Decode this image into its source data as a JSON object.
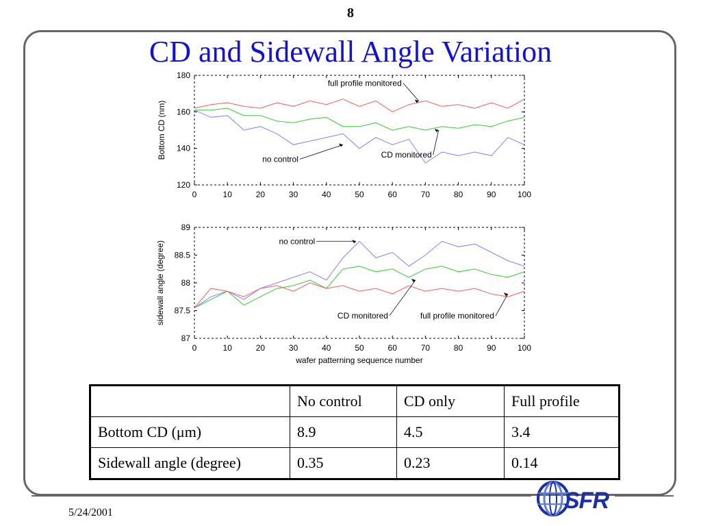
{
  "slide": {
    "page_number": "8",
    "title": "CD and Sidewall Angle Variation",
    "date": "5/24/2001",
    "logo_text": "SFR",
    "logo_icon": "globe-logo-icon"
  },
  "colors": {
    "title": "#1010e0",
    "no_control": "#8080ff",
    "cd_monitored": "#33cc33",
    "full_profile": "#ff5a5a"
  },
  "chart_data": [
    {
      "type": "line",
      "title": "",
      "xlabel": "",
      "ylabel": "Bottom CD (nm)",
      "xlim": [
        0,
        100
      ],
      "ylim": [
        120,
        180
      ],
      "xticks": [
        "0",
        "10",
        "20",
        "30",
        "40",
        "50",
        "60",
        "70",
        "80",
        "90",
        "100"
      ],
      "yticks": [
        "120",
        "140",
        "160",
        "180"
      ],
      "grid": false,
      "series": [
        {
          "key": "no_control",
          "x": [
            0,
            5,
            10,
            15,
            20,
            25,
            30,
            35,
            40,
            45,
            50,
            55,
            60,
            65,
            70,
            75,
            80,
            85,
            90,
            95,
            100
          ],
          "y": [
            161,
            157,
            158,
            150,
            152,
            148,
            142,
            144,
            146,
            148,
            140,
            146,
            142,
            145,
            132,
            138,
            136,
            138,
            136,
            146,
            142
          ]
        },
        {
          "key": "cd_monitored",
          "x": [
            0,
            5,
            10,
            15,
            20,
            25,
            30,
            35,
            40,
            45,
            50,
            55,
            60,
            65,
            70,
            75,
            80,
            85,
            90,
            95,
            100
          ],
          "y": [
            161,
            161,
            162,
            158,
            158,
            155,
            154,
            156,
            157,
            152,
            152,
            154,
            150,
            152,
            150,
            152,
            151,
            153,
            152,
            155,
            157
          ]
        },
        {
          "key": "full_profile",
          "x": [
            0,
            5,
            10,
            15,
            20,
            25,
            30,
            35,
            40,
            45,
            50,
            55,
            60,
            65,
            70,
            75,
            80,
            85,
            90,
            95,
            100
          ],
          "y": [
            162,
            164,
            165,
            163,
            162,
            165,
            163,
            166,
            164,
            167,
            163,
            166,
            160,
            164,
            166,
            163,
            164,
            162,
            165,
            162,
            167
          ]
        }
      ],
      "annotations": [
        {
          "text": "full profile monitored",
          "x": 68,
          "y": 166
        },
        {
          "text": "no control",
          "x": 45,
          "y": 142
        },
        {
          "text": "CD monitored",
          "x": 74,
          "y": 150
        }
      ]
    },
    {
      "type": "line",
      "title": "",
      "xlabel": "wafer patterning sequence number",
      "ylabel": "sidewall angle (degree)",
      "xlim": [
        0,
        100
      ],
      "ylim": [
        87,
        89
      ],
      "xticks": [
        "0",
        "10",
        "20",
        "30",
        "40",
        "50",
        "60",
        "70",
        "80",
        "90",
        "100"
      ],
      "yticks": [
        "87",
        "87.5",
        "88",
        "88.5",
        "89"
      ],
      "grid": false,
      "series": [
        {
          "key": "no_control",
          "x": [
            0,
            5,
            10,
            15,
            20,
            25,
            30,
            35,
            40,
            45,
            50,
            55,
            60,
            65,
            70,
            75,
            80,
            85,
            90,
            95,
            100
          ],
          "y": [
            87.55,
            87.75,
            87.85,
            87.7,
            87.9,
            88.0,
            88.1,
            88.2,
            88.05,
            88.45,
            88.75,
            88.45,
            88.55,
            88.3,
            88.5,
            88.75,
            88.65,
            88.7,
            88.55,
            88.4,
            88.3
          ]
        },
        {
          "key": "cd_monitored",
          "x": [
            0,
            5,
            10,
            15,
            20,
            25,
            30,
            35,
            40,
            45,
            50,
            55,
            60,
            65,
            70,
            75,
            80,
            85,
            90,
            95,
            100
          ],
          "y": [
            87.55,
            87.7,
            87.85,
            87.6,
            87.75,
            87.9,
            87.95,
            88.05,
            87.9,
            88.25,
            88.3,
            88.2,
            88.25,
            88.1,
            88.25,
            88.3,
            88.2,
            88.25,
            88.15,
            88.1,
            88.2
          ]
        },
        {
          "key": "full_profile",
          "x": [
            0,
            5,
            10,
            15,
            20,
            25,
            30,
            35,
            40,
            45,
            50,
            55,
            60,
            65,
            70,
            75,
            80,
            85,
            90,
            95,
            100
          ],
          "y": [
            87.55,
            87.9,
            87.85,
            87.75,
            87.9,
            87.95,
            87.85,
            88.0,
            87.9,
            87.95,
            87.85,
            87.9,
            87.8,
            87.95,
            87.85,
            87.9,
            87.85,
            87.9,
            87.8,
            87.75,
            87.85
          ]
        }
      ],
      "annotations": [
        {
          "text": "no control",
          "x": 49,
          "y": 88.75
        },
        {
          "text": "CD monitored",
          "x": 67,
          "y": 88.05
        },
        {
          "text": "full profile monitored",
          "x": 95,
          "y": 87.8
        }
      ]
    }
  ],
  "table": {
    "header": [
      "",
      "No control",
      "CD only",
      "Full profile"
    ],
    "rows": [
      [
        "Bottom CD (μm)",
        "8.9",
        "4.5",
        "3.4"
      ],
      [
        "Sidewall angle (degree)",
        "0.35",
        "0.23",
        "0.14"
      ]
    ]
  }
}
